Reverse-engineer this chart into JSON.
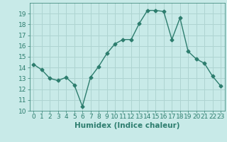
{
  "x": [
    0,
    1,
    2,
    3,
    4,
    5,
    6,
    7,
    8,
    9,
    10,
    11,
    12,
    13,
    14,
    15,
    16,
    17,
    18,
    19,
    20,
    21,
    22,
    23
  ],
  "y": [
    14.3,
    13.8,
    13.0,
    12.8,
    13.1,
    12.4,
    10.4,
    13.1,
    14.1,
    15.3,
    16.2,
    16.6,
    16.6,
    18.1,
    19.3,
    19.3,
    19.2,
    16.6,
    18.6,
    15.5,
    14.8,
    14.4,
    13.2,
    12.3
  ],
  "line_color": "#2d7d6e",
  "marker": "D",
  "marker_size": 2.5,
  "bg_color": "#c8eae8",
  "grid_color": "#aed4d1",
  "xlabel": "Humidex (Indice chaleur)",
  "ylim": [
    10,
    20
  ],
  "xlim": [
    -0.5,
    23.5
  ],
  "yticks": [
    10,
    11,
    12,
    13,
    14,
    15,
    16,
    17,
    18,
    19
  ],
  "xticks": [
    0,
    1,
    2,
    3,
    4,
    5,
    6,
    7,
    8,
    9,
    10,
    11,
    12,
    13,
    14,
    15,
    16,
    17,
    18,
    19,
    20,
    21,
    22,
    23
  ],
  "xlabel_fontsize": 7.5,
  "tick_fontsize": 6.5,
  "line_width": 1.0
}
